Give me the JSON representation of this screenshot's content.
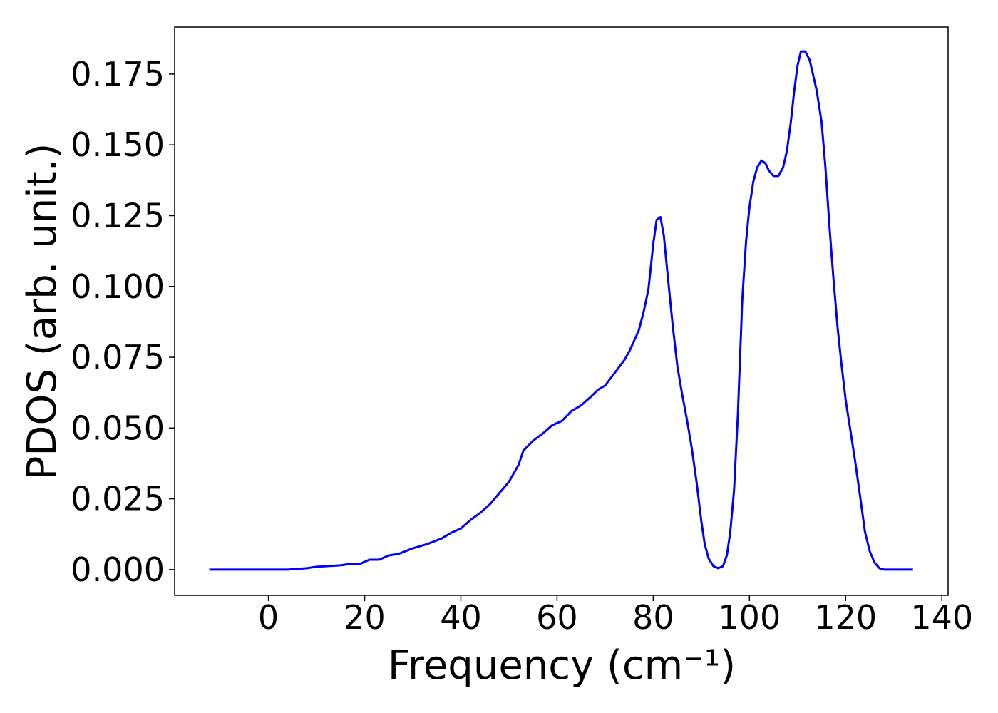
{
  "chart_data": {
    "type": "line",
    "xlabel": "Frequency (cm⁻¹)",
    "ylabel": "PDOS (arb. unit.)",
    "xlim": [
      -19.5,
      141.3
    ],
    "ylim": [
      -0.0091,
      0.1916
    ],
    "xticks": [
      0,
      20,
      40,
      60,
      80,
      100,
      120,
      140
    ],
    "yticks": [
      {
        "value": 0,
        "label": "0.000"
      },
      {
        "value": 0.025,
        "label": "0.025"
      },
      {
        "value": 0.05,
        "label": "0.050"
      },
      {
        "value": 0.075,
        "label": "0.075"
      },
      {
        "value": 0.1,
        "label": "0.100"
      },
      {
        "value": 0.125,
        "label": "0.125"
      },
      {
        "value": 0.15,
        "label": "0.150"
      },
      {
        "value": 0.175,
        "label": "0.175"
      }
    ],
    "grid": false,
    "series": [
      {
        "color": "#0000ff",
        "x": [
          -12.3,
          0,
          4,
          8,
          10,
          15,
          17,
          19,
          21,
          23,
          25,
          27,
          30,
          33,
          36,
          38,
          40,
          42,
          44,
          46,
          48,
          50,
          52,
          53,
          55,
          57,
          59,
          61,
          63,
          65,
          67,
          68.5,
          70,
          72,
          74,
          75,
          77,
          78,
          79,
          80,
          80.7,
          81.5,
          82.2,
          83,
          84,
          85,
          86,
          87,
          88,
          89,
          90,
          90.7,
          91.5,
          92.5,
          93.5,
          94.5,
          95.3,
          96,
          96.8,
          97.6,
          98.5,
          99.3,
          100,
          100.8,
          101.6,
          102.5,
          103.3,
          104,
          105,
          106,
          107,
          107.8,
          108.6,
          109.3,
          110,
          110.7,
          111.6,
          112.5,
          113.2,
          114,
          115,
          115.8,
          116.6,
          117.5,
          118.3,
          119.1,
          120,
          121,
          122,
          123,
          124,
          125,
          126,
          127,
          128,
          130,
          134
        ],
        "values": [
          0,
          0,
          0,
          0.0005,
          0.001,
          0.0015,
          0.002,
          0.002,
          0.0035,
          0.0035,
          0.005,
          0.0055,
          0.0075,
          0.009,
          0.011,
          0.013,
          0.0145,
          0.0175,
          0.02,
          0.023,
          0.027,
          0.031,
          0.037,
          0.042,
          0.0455,
          0.048,
          0.051,
          0.0525,
          0.056,
          0.058,
          0.061,
          0.0635,
          0.065,
          0.0695,
          0.074,
          0.077,
          0.0845,
          0.091,
          0.099,
          0.115,
          0.1235,
          0.1245,
          0.118,
          0.104,
          0.087,
          0.072,
          0.062,
          0.053,
          0.043,
          0.031,
          0.017,
          0.009,
          0.004,
          0.0012,
          0.0005,
          0.0012,
          0.005,
          0.013,
          0.028,
          0.055,
          0.095,
          0.116,
          0.128,
          0.137,
          0.142,
          0.1445,
          0.1435,
          0.141,
          0.139,
          0.139,
          0.142,
          0.148,
          0.158,
          0.169,
          0.178,
          0.183,
          0.183,
          0.18,
          0.175,
          0.169,
          0.158,
          0.142,
          0.122,
          0.102,
          0.086,
          0.073,
          0.06,
          0.049,
          0.038,
          0.026,
          0.0135,
          0.0065,
          0.0025,
          0.0005,
          0,
          0,
          0
        ]
      }
    ]
  }
}
